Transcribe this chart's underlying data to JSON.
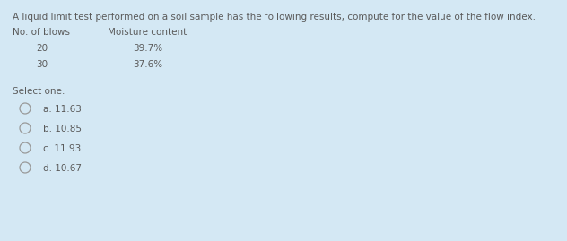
{
  "background_color": "#d4e8f4",
  "title_text": "A liquid limit test performed on a soil sample has the following results, compute for the value of the flow index.",
  "col1_header": "No. of blows",
  "col2_header": "Moisture content",
  "row1": [
    "20",
    "39.7%"
  ],
  "row2": [
    "30",
    "37.6%"
  ],
  "select_one_label": "Select one:",
  "options": [
    "a. 11.63",
    "b. 10.85",
    "c. 11.93",
    "d. 10.67"
  ],
  "title_fontsize": 7.5,
  "body_fontsize": 7.5,
  "text_color": "#5a5a5a",
  "circle_edge_color": "#999999",
  "circle_fill_color": "#d4e8f4"
}
